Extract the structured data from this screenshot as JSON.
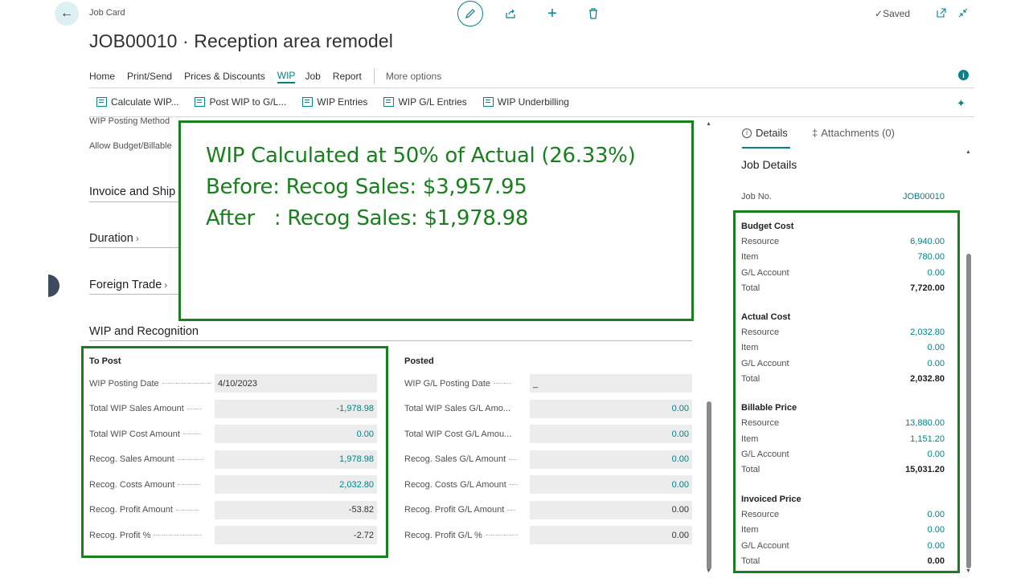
{
  "header": {
    "page_kind": "Job Card",
    "title": "JOB00010 · Reception area remodel",
    "saved": "Saved"
  },
  "menu": {
    "items": [
      "Home",
      "Print/Send",
      "Prices & Discounts",
      "WIP",
      "Job",
      "Report"
    ],
    "active": "WIP",
    "more": "More options"
  },
  "wip_actions": [
    "Calculate WIP...",
    "Post WIP to G/L...",
    "WIP Entries",
    "WIP G/L Entries",
    "WIP Underbilling"
  ],
  "left": {
    "partial_field_1": "WIP Posting Method",
    "partial_field_2": "Allow Budget/Billable",
    "sections": [
      "Invoice and Shipping",
      "Duration",
      "Foreign Trade"
    ],
    "invoice_section_visible": "Invoice and Ship",
    "wip_section": "WIP and Recognition"
  },
  "to_post": {
    "title": "To Post",
    "fields": [
      {
        "label": "WIP Posting Date",
        "value": "4/10/2023",
        "kind": "date"
      },
      {
        "label": "Total WIP Sales Amount",
        "value": "-1,978.98",
        "kind": "teal"
      },
      {
        "label": "Total WIP Cost Amount",
        "value": "0.00",
        "kind": "teal"
      },
      {
        "label": "Recog. Sales Amount",
        "value": "1,978.98",
        "kind": "teal"
      },
      {
        "label": "Recog. Costs Amount",
        "value": "2,032.80",
        "kind": "teal"
      },
      {
        "label": "Recog. Profit Amount",
        "value": "-53.82",
        "kind": "dark"
      },
      {
        "label": "Recog. Profit %",
        "value": "-2.72",
        "kind": "dark"
      }
    ]
  },
  "posted": {
    "title": "Posted",
    "fields": [
      {
        "label": "WIP G/L Posting Date",
        "value": "_",
        "kind": "date"
      },
      {
        "label": "Total WIP Sales G/L Amo...",
        "value": "0.00",
        "kind": "teal"
      },
      {
        "label": "Total WIP Cost G/L Amou...",
        "value": "0.00",
        "kind": "teal"
      },
      {
        "label": "Recog. Sales G/L Amount",
        "value": "0.00",
        "kind": "teal"
      },
      {
        "label": "Recog. Costs G/L Amount",
        "value": "0.00",
        "kind": "teal"
      },
      {
        "label": "Recog. Profit G/L Amount",
        "value": "0.00",
        "kind": "dark"
      },
      {
        "label": "Recog. Profit G/L %",
        "value": "0.00",
        "kind": "dark"
      }
    ]
  },
  "overlay": {
    "line1": "WIP Calculated at 50% of Actual (26.33%)",
    "line2": "Before: Recog Sales: $3,957.95",
    "line3": "After   : Recog Sales: $1,978.98"
  },
  "details": {
    "tab_details": "Details",
    "tab_attachments": "Attachments (0)",
    "heading": "Job Details",
    "job_no_label": "Job No.",
    "job_no": "JOB00010",
    "groups": [
      {
        "title": "Budget Cost",
        "rows": [
          [
            "Resource",
            "6,940.00"
          ],
          [
            "Item",
            "780.00"
          ],
          [
            "G/L Account",
            "0.00"
          ]
        ],
        "total_label": "Total",
        "total": "7,720.00"
      },
      {
        "title": "Actual Cost",
        "rows": [
          [
            "Resource",
            "2,032.80"
          ],
          [
            "Item",
            "0.00"
          ],
          [
            "G/L Account",
            "0.00"
          ]
        ],
        "total_label": "Total",
        "total": "2,032.80"
      },
      {
        "title": "Billable Price",
        "rows": [
          [
            "Resource",
            "13,880.00"
          ],
          [
            "Item",
            "1,151.20"
          ],
          [
            "G/L Account",
            "0.00"
          ]
        ],
        "total_label": "Total",
        "total": "15,031.20"
      },
      {
        "title": "Invoiced Price",
        "rows": [
          [
            "Resource",
            "0.00"
          ],
          [
            "Item",
            "0.00"
          ],
          [
            "G/L Account",
            "0.00"
          ]
        ],
        "total_label": "Total",
        "total": "0.00"
      }
    ]
  },
  "colors": {
    "accent": "#00838a",
    "highlight": "#18801c"
  }
}
